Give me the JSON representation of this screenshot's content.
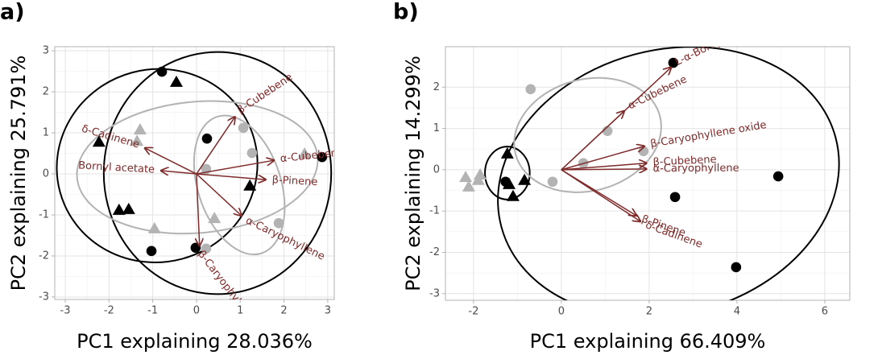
{
  "chart_data": [
    {
      "type": "biplot",
      "panel_label": "a)",
      "x_label": "PC1 explaining 28.036%",
      "y_label": "PC2 explaining 25.791%",
      "xlim": [
        -3.24,
        3.15
      ],
      "ylim": [
        -3.06,
        3.1
      ],
      "xticks": [
        -3,
        -2,
        -1,
        0,
        1,
        2,
        3
      ],
      "yticks": [
        -3,
        -2,
        -1,
        0,
        1,
        2,
        3
      ],
      "grid": true,
      "series": [
        {
          "color": "#000000",
          "marker": "circle",
          "x": [
            -0.79,
            0.24,
            2.87,
            -1.03,
            -0.02
          ],
          "y": [
            2.49,
            0.86,
            0.41,
            -1.88,
            -1.8
          ]
        },
        {
          "color": "#000000",
          "marker": "triangle",
          "x": [
            -0.46,
            -2.23,
            -1.77,
            -1.55,
            1.22
          ],
          "y": [
            2.24,
            0.78,
            -0.88,
            -0.86,
            -0.29
          ]
        },
        {
          "color": "#b3b3b3",
          "marker": "circle",
          "x": [
            1.07,
            1.27,
            0.22,
            1.88,
            0.22
          ],
          "y": [
            1.12,
            0.51,
            0.12,
            -1.2,
            -1.82
          ]
        },
        {
          "color": "#b3b3b3",
          "marker": "triangle",
          "x": [
            -1.29,
            -1.36,
            2.47,
            0.41,
            -0.96
          ],
          "y": [
            1.08,
            0.8,
            0.49,
            -1.08,
            -1.33
          ]
        }
      ],
      "ellipses": [
        {
          "color": "#000000",
          "cx": 0.48,
          "cy": 0.02,
          "rx": 2.6,
          "ry": 2.95,
          "angle": 0
        },
        {
          "color": "#000000",
          "cx": -0.9,
          "cy": 0.2,
          "rx": 2.3,
          "ry": 2.35,
          "angle": -15
        },
        {
          "color": "#b3b3b3",
          "cx": 0.02,
          "cy": 0.16,
          "rx": 2.76,
          "ry": 1.6,
          "angle": -5
        },
        {
          "color": "#b3b3b3",
          "cx": 0.98,
          "cy": -0.27,
          "rx": 0.95,
          "ry": 1.75,
          "angle": -18
        }
      ],
      "loadings_color": "#7f2a2a",
      "loadings": [
        {
          "label": "β-Cubebene",
          "x": 0.88,
          "y": 1.39
        },
        {
          "label": "α-Cubebene",
          "x": 1.77,
          "y": 0.33
        },
        {
          "label": "β-Pinene",
          "x": 1.58,
          "y": -0.14
        },
        {
          "label": "α-Caryophyllene",
          "x": 1.03,
          "y": -1.02
        },
        {
          "label": "β-Caryophyllene oxide",
          "x": 0.07,
          "y": -1.75
        },
        {
          "label": "δ-Cadinene",
          "x": -1.18,
          "y": 0.63
        },
        {
          "label": "Bornyl acetate",
          "x": -0.81,
          "y": 0.08
        }
      ]
    },
    {
      "type": "biplot",
      "panel_label": "b)",
      "x_label": "PC1 explaining 66.409%",
      "y_label": "PC2 explaining 14.299%",
      "xlim": [
        -2.64,
        6.57
      ],
      "ylim": [
        -3.16,
        2.98
      ],
      "xticks": [
        -2,
        0,
        2,
        4,
        6
      ],
      "yticks": [
        -3,
        -2,
        -1,
        0,
        1,
        2
      ],
      "grid": true,
      "series": [
        {
          "color": "#000000",
          "marker": "circle",
          "x": [
            2.55,
            4.94,
            2.59,
            3.98,
            -1.27
          ],
          "y": [
            2.59,
            -0.16,
            -0.66,
            -2.36,
            -0.29
          ]
        },
        {
          "color": "#000000",
          "marker": "triangle",
          "x": [
            -1.23,
            -0.84,
            -1.19,
            -1.1
          ],
          "y": [
            0.39,
            -0.25,
            -0.35,
            -0.64
          ]
        },
        {
          "color": "#b3b3b3",
          "marker": "circle",
          "x": [
            -0.7,
            1.05,
            1.87,
            0.5,
            -0.2
          ],
          "y": [
            1.95,
            0.94,
            0.45,
            0.16,
            -0.29
          ]
        },
        {
          "color": "#b3b3b3",
          "marker": "triangle",
          "x": [
            -2.18,
            -1.85,
            -2.11,
            -1.89
          ],
          "y": [
            -0.18,
            -0.12,
            -0.41,
            -0.25
          ]
        }
      ],
      "ellipses": [
        {
          "color": "#000000",
          "cx": 2.44,
          "cy": -0.3,
          "rx": 3.94,
          "ry": 3.2,
          "angle": -15
        },
        {
          "color": "#000000",
          "cx": -1.23,
          "cy": -0.08,
          "rx": 0.51,
          "ry": 0.64,
          "angle": 0
        },
        {
          "color": "#b3b3b3",
          "cx": 0.6,
          "cy": 0.84,
          "rx": 1.7,
          "ry": 1.35,
          "angle": -15
        }
      ],
      "loadings_color": "#7f2a2a",
      "loadings": [
        {
          "label": "L-α-Bornyl acetate",
          "x": 2.5,
          "y": 2.48
        },
        {
          "label": "α-Cubebene",
          "x": 1.43,
          "y": 1.42
        },
        {
          "label": "β-Caryophyllene oxide",
          "x": 1.89,
          "y": 0.57
        },
        {
          "label": "β-Cubebene",
          "x": 1.94,
          "y": 0.16
        },
        {
          "label": "α-Caryophyllene",
          "x": 1.94,
          "y": 0.02
        },
        {
          "label": "β-Pinene",
          "x": 1.71,
          "y": -1.11
        },
        {
          "label": "δ-Cadinene",
          "x": 1.8,
          "y": -1.25
        }
      ]
    }
  ]
}
